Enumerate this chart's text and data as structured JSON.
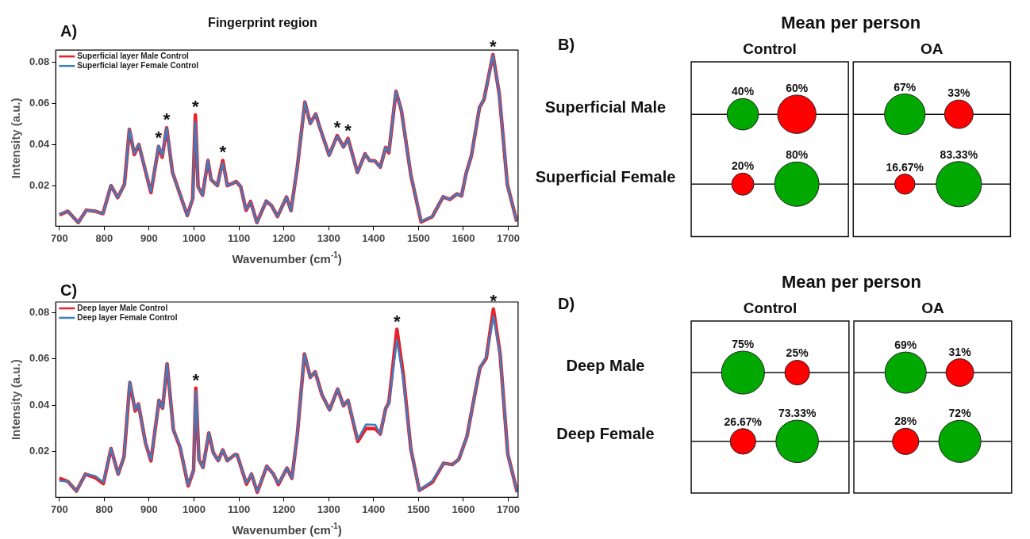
{
  "chart_data": [
    {
      "type": "line",
      "title": "Fingerprint region",
      "xlabel": "Wavenumber (cm$^{-1}$)",
      "ylabel": "Intensity (a.u.)",
      "legend": "top left",
      "xlim": [
        692,
        1722
      ],
      "ylim": [
        0.0005,
        0.086
      ],
      "xticks": [
        700,
        800,
        900,
        1000,
        1100,
        1200,
        1300,
        1400,
        1500,
        1600,
        1700
      ],
      "yticks": [
        0.02,
        0.04,
        0.06,
        0.08
      ],
      "annotations": [
        "A)",
        {
          "text": "*",
          "x": 921,
          "y": 0.0396
        },
        {
          "text": "*",
          "x": 939,
          "y": 0.0483
        },
        {
          "text": "*",
          "x": 1003,
          "y": 0.0545
        },
        {
          "text": "*",
          "x": 1064,
          "y": 0.0324
        },
        {
          "text": "*",
          "x": 1319,
          "y": 0.0445
        },
        {
          "text": "*",
          "x": 1343,
          "y": 0.0431
        },
        {
          "text": "*",
          "x": 1666,
          "y": 0.0838
        }
      ],
      "x": [
        700,
        719,
        742,
        760,
        779,
        797,
        815,
        830,
        845,
        856,
        867,
        877,
        904,
        921,
        929,
        939,
        952,
        985,
        997,
        1003,
        1009,
        1019,
        1031,
        1038,
        1052,
        1064,
        1074,
        1083,
        1094,
        1104,
        1116,
        1126,
        1140,
        1161,
        1173,
        1186,
        1206,
        1216,
        1230,
        1247,
        1259,
        1271,
        1280,
        1301,
        1319,
        1333,
        1343,
        1364,
        1381,
        1391,
        1403,
        1415,
        1427,
        1434,
        1450,
        1462,
        1483,
        1506,
        1531,
        1555,
        1570,
        1586,
        1596,
        1606,
        1618,
        1636,
        1646,
        1666,
        1680,
        1698,
        1719
      ],
      "series": [
        {
          "name": "Superficial layer Male Control",
          "color": "#e8212b",
          "values": [
            0.006,
            0.0078,
            0.0023,
            0.0083,
            0.0078,
            0.0066,
            0.0202,
            0.0144,
            0.0208,
            0.0475,
            0.0353,
            0.0402,
            0.0168,
            0.0392,
            0.034,
            0.0483,
            0.0266,
            0.0057,
            0.0139,
            0.0545,
            0.0197,
            0.0156,
            0.0324,
            0.0231,
            0.0202,
            0.0324,
            0.0202,
            0.021,
            0.0222,
            0.0197,
            0.0082,
            0.0125,
            0.0023,
            0.0127,
            0.0104,
            0.0052,
            0.0147,
            0.0081,
            0.0289,
            0.0608,
            0.0504,
            0.055,
            0.0486,
            0.035,
            0.0445,
            0.039,
            0.0431,
            0.0266,
            0.0356,
            0.0324,
            0.0322,
            0.0292,
            0.0388,
            0.0361,
            0.066,
            0.0567,
            0.0254,
            0.0026,
            0.0052,
            0.0148,
            0.0135,
            0.0162,
            0.0152,
            0.026,
            0.0347,
            0.0581,
            0.062,
            0.0838,
            0.0648,
            0.0208,
            0.0028
          ]
        },
        {
          "name": "Superficial layer Female Control",
          "color": "#3d7ebf",
          "values": [
            0.0063,
            0.0078,
            0.0023,
            0.0083,
            0.0078,
            0.0066,
            0.0202,
            0.0144,
            0.0208,
            0.0475,
            0.0359,
            0.0402,
            0.0173,
            0.0396,
            0.0347,
            0.0483,
            0.0266,
            0.0057,
            0.0139,
            0.0509,
            0.0197,
            0.0156,
            0.0324,
            0.0231,
            0.0202,
            0.0312,
            0.0202,
            0.021,
            0.0222,
            0.0197,
            0.0086,
            0.0121,
            0.0023,
            0.0127,
            0.0104,
            0.0052,
            0.0147,
            0.0081,
            0.0289,
            0.0608,
            0.0504,
            0.055,
            0.0486,
            0.035,
            0.0442,
            0.039,
            0.0428,
            0.0266,
            0.0356,
            0.0324,
            0.0322,
            0.0292,
            0.0388,
            0.0365,
            0.066,
            0.0567,
            0.0254,
            0.0028,
            0.0052,
            0.0148,
            0.0135,
            0.0162,
            0.0152,
            0.026,
            0.0347,
            0.0581,
            0.062,
            0.0836,
            0.0648,
            0.0208,
            0.0028
          ]
        }
      ]
    },
    {
      "type": "other",
      "title": "Mean per person",
      "categories": [
        "Control",
        "OA"
      ],
      "annotations": [
        "B)"
      ],
      "series": [
        {
          "name": "Superficial Male",
          "values": [
            40,
            67
          ],
          "colors": [
            "#00a800",
            "#00a800"
          ],
          "value_labels": [
            "40%",
            "67%"
          ]
        },
        {
          "values": [
            60,
            33
          ],
          "colors": [
            "#ff0000",
            "#ff0000"
          ],
          "value_labels": [
            "60%",
            "33%"
          ]
        },
        {
          "name": "Superficial Female",
          "values": [
            20,
            16.67
          ],
          "colors": [
            "#ff0000",
            "#ff0000"
          ],
          "value_labels": [
            "20%",
            "16.67%"
          ]
        },
        {
          "values": [
            80,
            83.33
          ],
          "colors": [
            "#00a800",
            "#00a800"
          ],
          "value_labels": [
            "80%",
            "83.33%"
          ]
        }
      ]
    },
    {
      "type": "line",
      "xlabel": "Wavenumber (cm$^{-1}$)",
      "ylabel": "Intensity (a.u.)",
      "legend": "top left",
      "xlim": [
        692,
        1722
      ],
      "ylim": [
        0.0003,
        0.0845
      ],
      "xticks": [
        700,
        800,
        900,
        1000,
        1100,
        1200,
        1300,
        1400,
        1500,
        1600,
        1700
      ],
      "yticks": [
        0.02,
        0.04,
        0.06,
        0.08
      ],
      "annotations": [
        "C)",
        {
          "text": "*",
          "x": 1004,
          "y": 0.0473
        },
        {
          "text": "*",
          "x": 1452,
          "y": 0.0727
        },
        {
          "text": "*",
          "x": 1667,
          "y": 0.0814
        }
      ],
      "x": [
        700,
        719,
        738,
        758,
        780,
        798,
        815,
        831,
        844,
        857,
        869,
        876,
        892,
        904,
        922,
        930,
        940,
        954,
        969,
        987,
        999,
        1004,
        1011,
        1020,
        1033,
        1043,
        1054,
        1064,
        1074,
        1091,
        1096,
        1117,
        1128,
        1141,
        1162,
        1177,
        1188,
        1207,
        1218,
        1230,
        1246,
        1259,
        1270,
        1285,
        1302,
        1320,
        1333,
        1343,
        1365,
        1383,
        1404,
        1415,
        1427,
        1434,
        1452,
        1466,
        1483,
        1502,
        1531,
        1556,
        1575,
        1590,
        1608,
        1622,
        1637,
        1651,
        1667,
        1682,
        1699,
        1720
      ],
      "series": [
        {
          "name": "Deep layer Male Control",
          "color": "#e8212b",
          "values": [
            0.0085,
            0.0071,
            0.003,
            0.0103,
            0.0088,
            0.0062,
            0.0213,
            0.0103,
            0.0178,
            0.0497,
            0.0375,
            0.0406,
            0.0236,
            0.016,
            0.0421,
            0.0387,
            0.0578,
            0.0294,
            0.0218,
            0.0052,
            0.012,
            0.0473,
            0.0166,
            0.0132,
            0.028,
            0.0195,
            0.0161,
            0.0207,
            0.0161,
            0.0187,
            0.0186,
            0.006,
            0.0103,
            0.0025,
            0.0137,
            0.0103,
            0.0058,
            0.0129,
            0.0085,
            0.0271,
            0.0621,
            0.052,
            0.0544,
            0.0445,
            0.038,
            0.047,
            0.0398,
            0.0421,
            0.0244,
            0.03,
            0.0299,
            0.0276,
            0.0386,
            0.041,
            0.0727,
            0.0535,
            0.0212,
            0.0033,
            0.0068,
            0.015,
            0.0144,
            0.0167,
            0.0265,
            0.041,
            0.0561,
            0.0602,
            0.0814,
            0.062,
            0.019,
            0.0025
          ]
        },
        {
          "name": "Deep layer Female Control",
          "color": "#3d7ebf",
          "values": [
            0.0074,
            0.0071,
            0.003,
            0.0103,
            0.0095,
            0.0068,
            0.0213,
            0.0103,
            0.0178,
            0.0502,
            0.0381,
            0.0406,
            0.0236,
            0.0166,
            0.0421,
            0.0387,
            0.0578,
            0.0294,
            0.0224,
            0.0056,
            0.012,
            0.0462,
            0.0166,
            0.0132,
            0.028,
            0.0195,
            0.0161,
            0.0207,
            0.0161,
            0.0187,
            0.0186,
            0.0064,
            0.0103,
            0.0027,
            0.0137,
            0.0103,
            0.0062,
            0.0129,
            0.0085,
            0.0271,
            0.0621,
            0.052,
            0.0544,
            0.0445,
            0.038,
            0.047,
            0.0398,
            0.0421,
            0.0253,
            0.0317,
            0.0315,
            0.0276,
            0.0386,
            0.0404,
            0.0682,
            0.0514,
            0.0212,
            0.0033,
            0.0074,
            0.015,
            0.0144,
            0.0167,
            0.0265,
            0.041,
            0.0561,
            0.0607,
            0.0784,
            0.062,
            0.019,
            0.0025
          ]
        }
      ]
    },
    {
      "type": "other",
      "title": "Mean per person",
      "categories": [
        "Control",
        "OA"
      ],
      "annotations": [
        "D)"
      ],
      "series": [
        {
          "name": "Deep Male",
          "values": [
            75,
            69
          ],
          "colors": [
            "#00a800",
            "#00a800"
          ],
          "value_labels": [
            "75%",
            "69%"
          ]
        },
        {
          "values": [
            25,
            31
          ],
          "colors": [
            "#ff0000",
            "#ff0000"
          ],
          "value_labels": [
            "25%",
            "31%"
          ]
        },
        {
          "name": "Deep Female",
          "values": [
            26.67,
            28
          ],
          "colors": [
            "#ff0000",
            "#ff0000"
          ],
          "value_labels": [
            "26.67%",
            "28%"
          ]
        },
        {
          "values": [
            73.33,
            72
          ],
          "colors": [
            "#00a800",
            "#00a800"
          ],
          "value_labels": [
            "73.33%",
            "72%"
          ]
        }
      ]
    }
  ]
}
